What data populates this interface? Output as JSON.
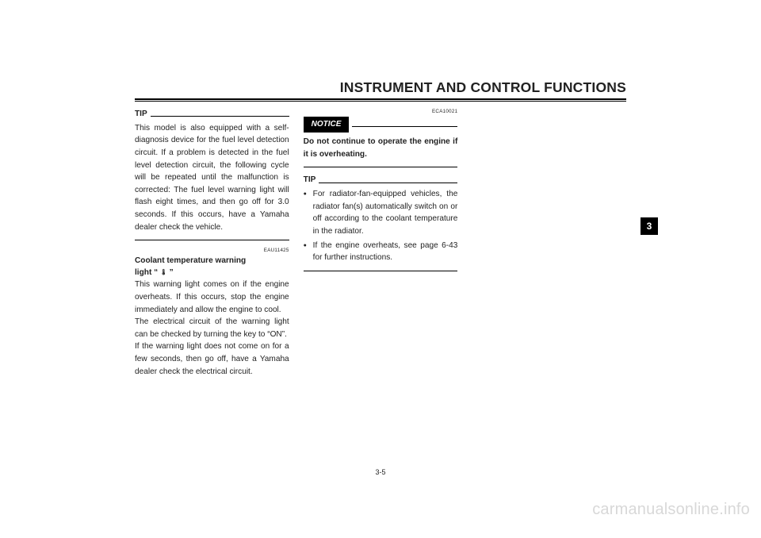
{
  "header": {
    "title": "INSTRUMENT AND CONTROL FUNCTIONS"
  },
  "sideTab": "3",
  "pageNumber": "3-5",
  "watermark": "carmanualsonline.info",
  "col1": {
    "tipLabel": "TIP",
    "tipBody": "This model is also equipped with a self-diagnosis device for the fuel level detection circuit. If a problem is detected in the fuel level detection circuit, the following cycle will be repeated until the malfunction is corrected: The fuel level warning light will flash eight times, and then go off for 3.0 seconds. If this occurs, have a Yamaha dealer check the vehicle.",
    "code": "EAU11425",
    "sub1a": "Coolant temperature warning",
    "sub1b_prefix": "light",
    "sub1b_open": "“ ",
    "sub1b_icon": "🌡",
    "sub1b_close": " ”",
    "body2": "This warning light comes on if the engine overheats. If this occurs, stop the engine immediately and allow the engine to cool.",
    "body3": "The electrical circuit of the warning light can be checked by turning the key to “ON”.",
    "body4": "If the warning light does not come on for a few seconds, then go off, have a Yamaha dealer check the electrical circuit."
  },
  "col2": {
    "code": "ECA10021",
    "noticeLabel": "NOTICE",
    "noticeBody": "Do not continue to operate the engine if it is overheating.",
    "tipLabel": "TIP",
    "bullets": [
      "For radiator-fan-equipped vehicles, the radiator fan(s) automatically switch on or off according to the coolant temperature in the radiator.",
      "If the engine overheats, see page 6-43 for further instructions."
    ]
  }
}
